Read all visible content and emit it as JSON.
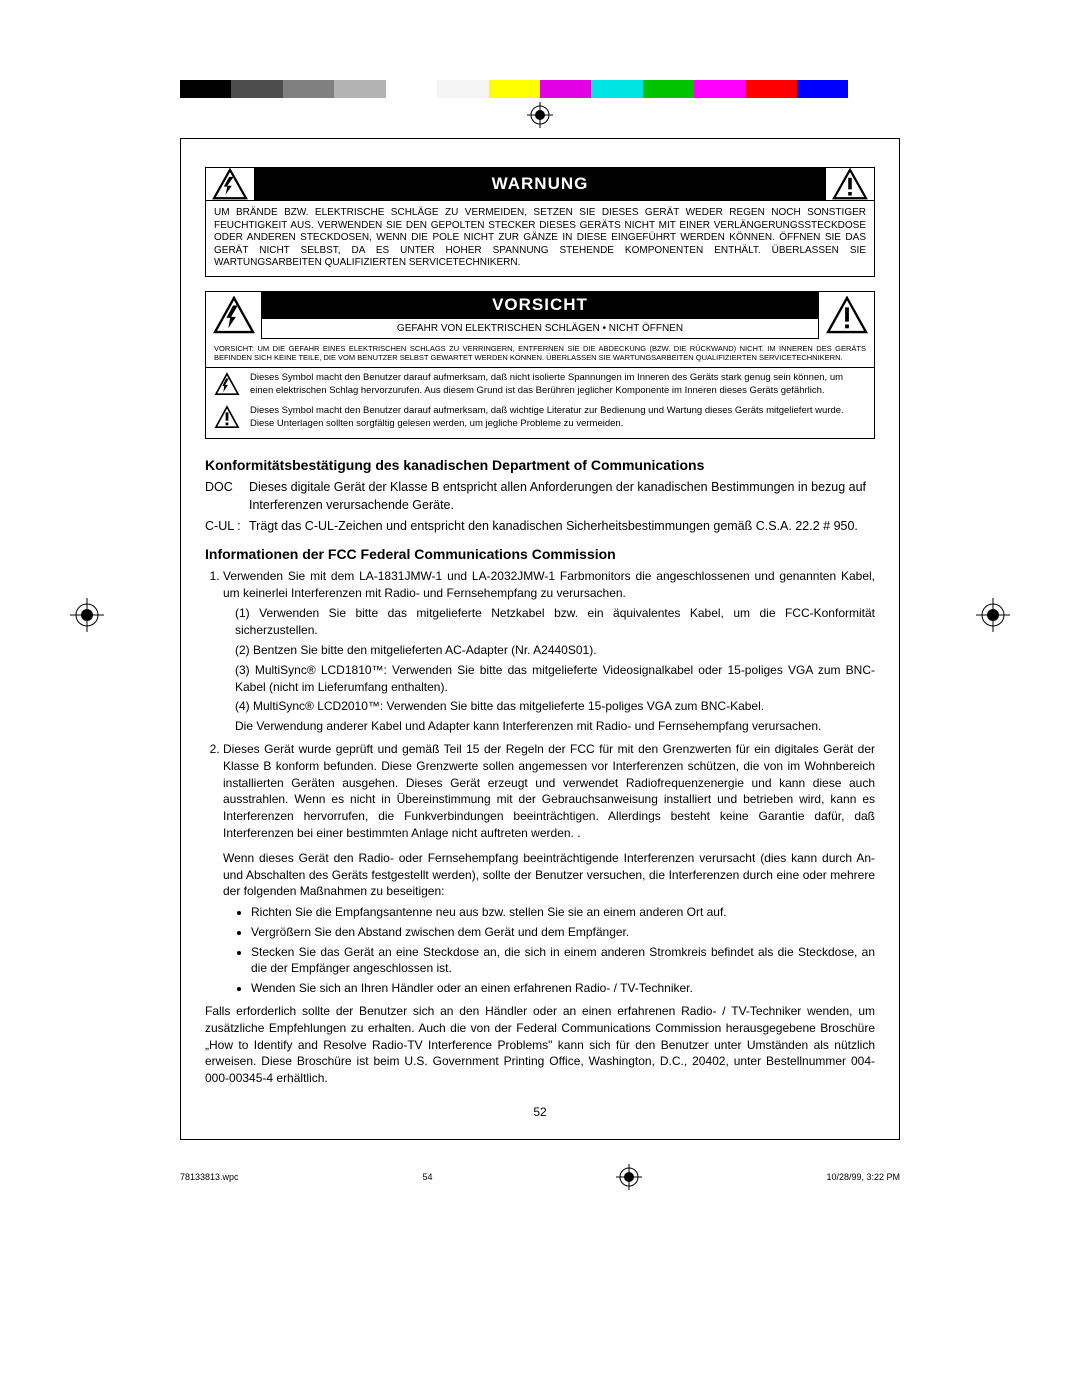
{
  "colorbar": [
    "#000000",
    "#4d4d4d",
    "#808080",
    "#b3b3b3",
    "#ffffff",
    "#f5f5f5",
    "#ffff00",
    "#e400e4",
    "#00e4e4",
    "#00c400",
    "#ff00ff",
    "#ff0000",
    "#0000ff",
    "#ffffff"
  ],
  "warnung": {
    "title": "WARNUNG",
    "body": "UM BRÄNDE BZW. ELEKTRISCHE SCHLÄGE ZU VERMEIDEN, SETZEN SIE DIESES GERÄT WEDER REGEN NOCH SONSTIGER FEUCHTIGKEIT AUS. VERWENDEN SIE DEN GEPOLTEN STECKER DIESES GERÄTS NICHT MIT EINER VERLÄNGERUNGSSTECKDOSE ODER ANDEREN STECKDOSEN, WENN DIE POLE NICHT ZUR GÄNZE IN DIESE EINGEFÜHRT WERDEN KÖNNEN. ÖFFNEN SIE DAS GERÄT NICHT SELBST, DA ES UNTER HOHER SPANNUNG STEHENDE KOMPONENTEN ENTHÄLT. ÜBERLASSEN SIE WARTUNGSARBEITEN QUALIFIZIERTEN SERVICETECHNIKERN."
  },
  "vorsicht": {
    "title": "VORSICHT",
    "subtitle": "GEFAHR VON ELEKTRISCHEN SCHLÄGEN • NICHT ÖFFNEN",
    "small": "VORSICHT: UM DIE GEFAHR EINES ELEKTRISCHEN SCHLAGS ZU VERRINGERN, ENTFERNEN SIE DIE ABDECKUNG (BZW. DIE RÜCKWAND) NICHT. IM INNEREN DES GERÄTS BEFINDEN SICH KEINE TEILE, DIE VOM BENUTZER SELBST GEWARTET WERDEN KÖNNEN. ÜBERLASSEN SIE WARTUNGSARBEITEN QUALIFIZIERTEN SERVICETECHNIKERN.",
    "sym1": "Dieses Symbol macht den Benutzer darauf aufmerksam, daß nicht isolierte Spannungen im Inneren des Geräts stark genug sein können, um einen elektrischen Schlag hervorzurufen. Aus diesem Grund ist das Berühren jeglicher Komponente im Inneren dieses Geräts gefährlich.",
    "sym2": "Dieses Symbol macht den Benutzer darauf aufmerksam, daß wichtige Literatur zur Bedienung und Wartung dieses Geräts mitgeliefert wurde. Diese Unterlagen sollten sorgfältig gelesen werden, um jegliche Probleme zu vermeiden."
  },
  "doc_heading": "Konformitätsbestätigung des kanadischen Department of Communications",
  "doc": {
    "doc_label": "DOC",
    "doc_text": "Dieses digitale Gerät der Klasse B entspricht allen Anforderungen der kanadischen Bestimmungen in bezug auf Interferenzen verursachende Geräte.",
    "cul_label": "C-UL :",
    "cul_text": "Trägt das C-UL-Zeichen und entspricht den kanadischen Sicherheitsbestimmungen gemäß C.S.A. 22.2 # 950."
  },
  "fcc_heading": "Informationen der FCC Federal Communications Commission",
  "fcc": {
    "item1_intro": "Verwenden Sie mit dem LA-1831JMW-1 und LA-2032JMW-1 Farbmonitors die angeschlossenen und genannten Kabel, um keinerlei Interferenzen mit Radio- und Fernsehempfang zu verursachen.",
    "sub1": "(1)  Verwenden Sie bitte das mitgelieferte Netzkabel bzw. ein äquivalentes Kabel, um die FCC-Konformität sicherzustellen.",
    "sub2": "(2)  Bentzen Sie bitte den mitgelieferten AC-Adapter (Nr. A2440S01).",
    "sub3": "(3)  MultiSync® LCD1810™: Verwenden Sie bitte das mitgelieferte Videosignalkabel oder 15-poliges VGA zum BNC-Kabel (nicht im Lieferumfang enthalten).",
    "sub4": "(4)  MultiSync® LCD2010™: Verwenden Sie bitte das mitgelieferte 15-poliges VGA zum BNC-Kabel.",
    "sub_after": "Die Verwendung anderer Kabel und Adapter kann Interferenzen mit Radio- und Fernsehempfang verursachen.",
    "item2": "Dieses Gerät wurde geprüft und gemäß Teil 15 der Regeln der FCC für mit den Grenzwerten für ein digitales Gerät der Klasse B konform befunden. Diese Grenzwerte sollen angemessen vor Interferenzen schützen, die von im Wohnbereich installierten Geräten ausgehen. Dieses Gerät erzeugt und verwendet Radiofrequenzenergie und kann diese auch ausstrahlen. Wenn es nicht in Übereinstimmung mit der Gebrauchsanweisung installiert und betrieben wird, kann es Interferenzen hervorrufen, die Funkverbindungen beeinträchtigen. Allerdings besteht keine Garantie dafür, daß Interferenzen bei einer bestimmten Anlage nicht auftreten werden. .",
    "item2b": "Wenn dieses Gerät den Radio- oder Fernsehempfang beeinträchtigende Interferenzen verursacht (dies kann durch An- und Abschalten des Geräts festgestellt werden), sollte der Benutzer versuchen, die Interferenzen durch eine oder mehrere der folgenden Maßnahmen zu beseitigen:",
    "b1": "Richten Sie die Empfangsantenne neu aus bzw. stellen Sie sie an einem anderen Ort auf.",
    "b2": "Vergrößern Sie den Abstand zwischen dem Gerät und dem Empfänger.",
    "b3": "Stecken Sie das Gerät an eine Steckdose an, die sich in einem anderen Stromkreis befindet als die Steckdose, an die der Empfänger angeschlossen ist.",
    "b4": "Wenden Sie sich an Ihren Händler oder an einen erfahrenen Radio- / TV-Techniker.",
    "after": "Falls erforderlich sollte der Benutzer sich an den Händler oder an einen erfahrenen Radio- / TV-Techniker wenden, um zusätzliche Empfehlungen zu erhalten. Auch die von der Federal Communications Commission herausgegebene Broschüre „How to Identify and Resolve Radio-TV Interference Problems\" kann sich für den Benutzer unter Umständen als nützlich erweisen. Diese Broschüre ist beim U.S. Government Printing Office, Washington, D.C., 20402, unter Bestellnummer 004-000-00345-4 erhältlich."
  },
  "page_number": "52",
  "footer": {
    "file": "78133813.wpc",
    "page": "54",
    "datetime": "10/28/99, 3:22 PM"
  }
}
